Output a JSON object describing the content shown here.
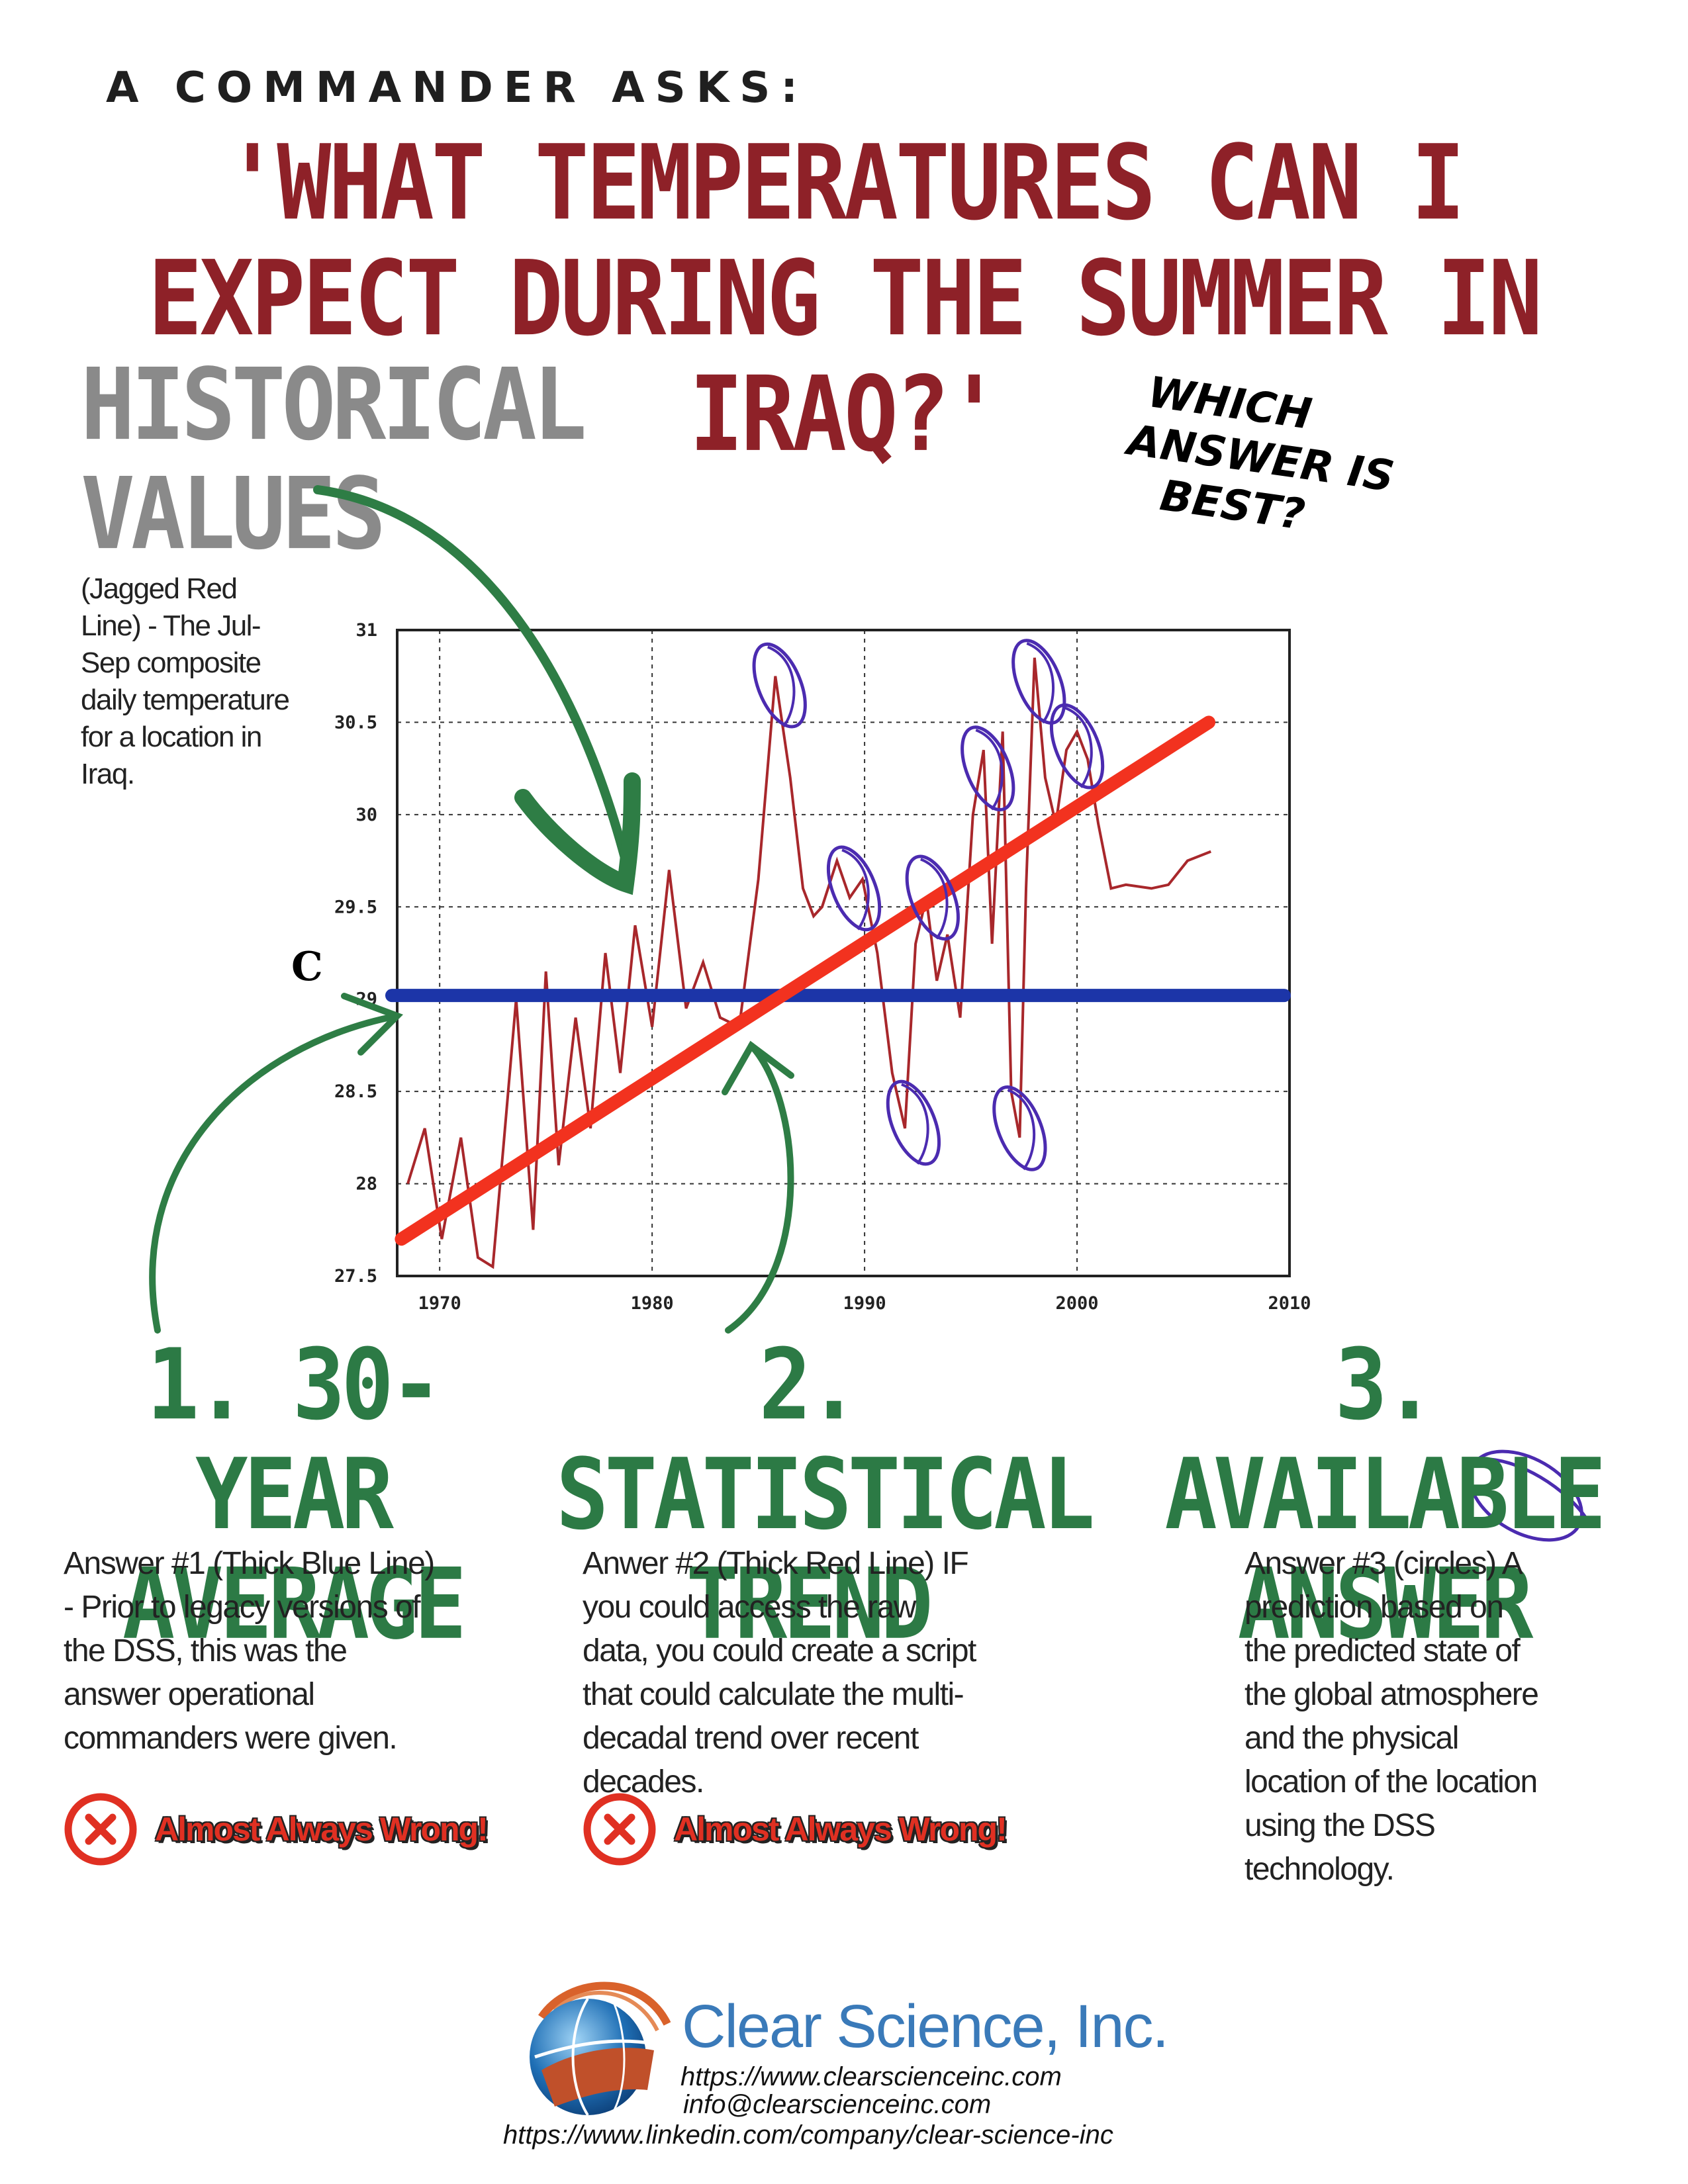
{
  "header": {
    "kicker": "A COMMANDER ASKS:",
    "headline": "'WHAT TEMPERATURES CAN I EXPECT DURING THE SUMMER IN IRAQ?'"
  },
  "historical": {
    "title_line1": "HISTORICAL",
    "title_line2": "VALUES",
    "description": "(Jagged Red Line) - The Jul-Sep composite daily temperature for a location in Iraq."
  },
  "callout": {
    "line1": "WHICH",
    "line2": "ANSWER IS",
    "line3": "BEST?"
  },
  "colors": {
    "headline": "#8e2128",
    "section": "#2c7a45",
    "historical_title": "#8a8a8a",
    "average_line": "#1c35a8",
    "trend_line": "#f2321f",
    "series_line": "#a8272b",
    "circles": "#4b2bb0",
    "wrong": "#e03022",
    "brand": "#3a7ab9"
  },
  "chart_data": {
    "type": "line",
    "ylabel": "C",
    "xlim": [
      1968,
      2010
    ],
    "ylim": [
      27.5,
      31
    ],
    "x_ticks": [
      "1970",
      "1980",
      "1990",
      "2000",
      "2010"
    ],
    "y_ticks": [
      "31",
      "30.5",
      "30",
      "29.5",
      "29",
      "28.5",
      "28",
      "27.5"
    ],
    "grid": true,
    "series": [
      {
        "x": [
          1968.5,
          1969.3,
          1970.1,
          1971.0,
          1971.8,
          1972.5,
          1973.0,
          1973.6,
          1974.4,
          1975.0,
          1975.6,
          1976.4,
          1977.1,
          1977.8,
          1978.5,
          1979.2,
          1980.0,
          1980.8,
          1981.6,
          1982.4,
          1983.2,
          1984.1,
          1985.0,
          1985.8,
          1986.5,
          1987.1,
          1987.6,
          1988.0,
          1988.7,
          1989.3,
          1989.9,
          1990.6,
          1991.3,
          1991.9,
          1992.4,
          1992.9,
          1993.4,
          1993.9,
          1994.5,
          1995.1,
          1995.6,
          1996.0,
          1996.5,
          1996.9,
          1997.3,
          1997.6,
          1998.0,
          1998.5,
          1999.0,
          1999.5,
          2000.0,
          2000.5,
          2001.0,
          2001.6,
          2002.3,
          2003.5,
          2004.3,
          2005.2,
          2006.3
        ],
        "y": [
          28.0,
          28.3,
          27.7,
          28.25,
          27.6,
          27.55,
          28.2,
          29.0,
          27.75,
          29.15,
          28.1,
          28.9,
          28.3,
          29.25,
          28.6,
          29.4,
          28.85,
          29.7,
          28.95,
          29.2,
          28.9,
          28.85,
          29.65,
          30.75,
          30.2,
          29.6,
          29.45,
          29.5,
          29.75,
          29.55,
          29.65,
          29.25,
          28.6,
          28.3,
          29.3,
          29.55,
          29.1,
          29.35,
          28.9,
          30.0,
          30.35,
          29.3,
          30.45,
          28.5,
          28.25,
          29.6,
          30.85,
          30.2,
          29.95,
          30.35,
          30.45,
          30.3,
          29.95,
          29.6,
          29.62,
          29.6,
          29.62,
          29.75,
          29.8
        ]
      }
    ],
    "average_line": {
      "y": 29.02
    },
    "trend_line": {
      "x": [
        1968.2,
        2006.2
      ],
      "y": [
        27.7,
        30.5
      ]
    },
    "circles": [
      {
        "x": 1986.0,
        "y": 30.7
      },
      {
        "x": 1989.5,
        "y": 29.6
      },
      {
        "x": 1993.2,
        "y": 29.55
      },
      {
        "x": 1995.8,
        "y": 30.25
      },
      {
        "x": 1998.2,
        "y": 30.72
      },
      {
        "x": 2000.0,
        "y": 30.37
      },
      {
        "x": 1992.3,
        "y": 28.33
      },
      {
        "x": 1997.3,
        "y": 28.3
      }
    ]
  },
  "sections": [
    {
      "title_line1": "1. 30-YEAR",
      "title_line2": "AVERAGE",
      "description": "Answer #1 (Thick Blue Line) - Prior to legacy versions of the DSS, this was the answer operational commanders were given.",
      "verdict": "Almost Always Wrong!"
    },
    {
      "title_line1": "2. STATISTICAL",
      "title_line2": "TREND",
      "description": "Anwer #2 (Thick Red Line) IF you could access the raw data, you could create a script that could calculate the multi-decadal trend over recent decades.",
      "verdict": "Almost Always Wrong!"
    },
    {
      "title_line1": "3.  AVAILABLE",
      "title_line2": "ANSWER",
      "description": "Answer #3 (circles) A prediction based on the predicted state of the global atmosphere and the physical location of the location using the DSS technology."
    }
  ],
  "footer": {
    "brand": "Clear Science, Inc.",
    "website": "https://www.clearscienceinc.com",
    "email": "info@clearscienceinc.com",
    "linkedin": "https://www.linkedin.com/company/clear-science-inc"
  }
}
